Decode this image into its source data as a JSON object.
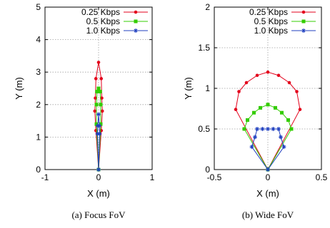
{
  "chart_data": [
    {
      "type": "line",
      "caption": "(a)  Focus FoV",
      "xlabel": "X (m)",
      "ylabel": "Y (m)",
      "xlim": [
        -1,
        1
      ],
      "ylim": [
        0,
        5
      ],
      "xticks": [
        -1,
        0,
        1
      ],
      "yticks": [
        0,
        1,
        2,
        3,
        4,
        5
      ],
      "grid": true,
      "legend_position": "top-right",
      "series": [
        {
          "name": "0.25 Kbps",
          "color": "#e3001b",
          "marker": "circle",
          "points": [
            [
              0,
              0
            ],
            [
              -0.05,
              1.2
            ],
            [
              -0.07,
              1.8
            ],
            [
              -0.06,
              2.2
            ],
            [
              -0.05,
              2.8
            ],
            [
              0,
              3.3
            ],
            [
              0.05,
              2.8
            ],
            [
              0.06,
              2.2
            ],
            [
              0.07,
              1.8
            ],
            [
              0.05,
              1.2
            ],
            [
              0,
              0
            ]
          ]
        },
        {
          "name": "0.5 Kbps",
          "color": "#33cc00",
          "marker": "square",
          "points": [
            [
              0,
              0
            ],
            [
              -0.04,
              1.4
            ],
            [
              -0.04,
              2.0
            ],
            [
              -0.03,
              2.4
            ],
            [
              0,
              2.5
            ],
            [
              0.03,
              2.4
            ],
            [
              0.04,
              2.0
            ],
            [
              0.04,
              1.4
            ],
            [
              0,
              0
            ]
          ]
        },
        {
          "name": "1.0 Kbps",
          "color": "#1f3fbf",
          "marker": "star",
          "points": [
            [
              0,
              0
            ],
            [
              -0.02,
              1.1
            ],
            [
              -0.015,
              1.35
            ],
            [
              0,
              1.7
            ],
            [
              0.015,
              1.35
            ],
            [
              0.02,
              1.1
            ],
            [
              0,
              0
            ]
          ]
        }
      ]
    },
    {
      "type": "line",
      "caption": "(b)  Wide FoV",
      "xlabel": "X (m)",
      "ylabel": "Y (m)",
      "xlim": [
        -0.5,
        0.5
      ],
      "ylim": [
        0,
        2
      ],
      "xticks": [
        -0.5,
        0,
        0.5
      ],
      "yticks": [
        0,
        0.5,
        1,
        1.5,
        2
      ],
      "ytick_labels": [
        "0",
        "0.5",
        "1",
        "1.5",
        "2"
      ],
      "grid": true,
      "legend_position": "top-right",
      "series": [
        {
          "name": "0.25 Kbps",
          "color": "#e3001b",
          "marker": "circle",
          "points": [
            [
              0,
              0
            ],
            [
              -0.3,
              0.74
            ],
            [
              -0.27,
              0.96
            ],
            [
              -0.2,
              1.07
            ],
            [
              -0.1,
              1.16
            ],
            [
              0,
              1.2
            ],
            [
              0.1,
              1.16
            ],
            [
              0.2,
              1.07
            ],
            [
              0.27,
              0.96
            ],
            [
              0.3,
              0.74
            ],
            [
              0,
              0
            ]
          ]
        },
        {
          "name": "0.5 Kbps",
          "color": "#33cc00",
          "marker": "square",
          "points": [
            [
              0,
              0
            ],
            [
              -0.22,
              0.5
            ],
            [
              -0.19,
              0.61
            ],
            [
              -0.13,
              0.7
            ],
            [
              -0.07,
              0.76
            ],
            [
              0,
              0.8
            ],
            [
              0.07,
              0.76
            ],
            [
              0.13,
              0.7
            ],
            [
              0.19,
              0.61
            ],
            [
              0.22,
              0.5
            ],
            [
              0,
              0
            ]
          ]
        },
        {
          "name": "1.0 Kbps",
          "color": "#1f3fbf",
          "marker": "star",
          "points": [
            [
              0,
              0
            ],
            [
              -0.15,
              0.28
            ],
            [
              -0.12,
              0.4
            ],
            [
              -0.1,
              0.5
            ],
            [
              -0.05,
              0.5
            ],
            [
              0,
              0.5
            ],
            [
              0.05,
              0.5
            ],
            [
              0.1,
              0.5
            ],
            [
              0.12,
              0.4
            ],
            [
              0.15,
              0.28
            ],
            [
              0,
              0
            ]
          ]
        }
      ]
    }
  ]
}
